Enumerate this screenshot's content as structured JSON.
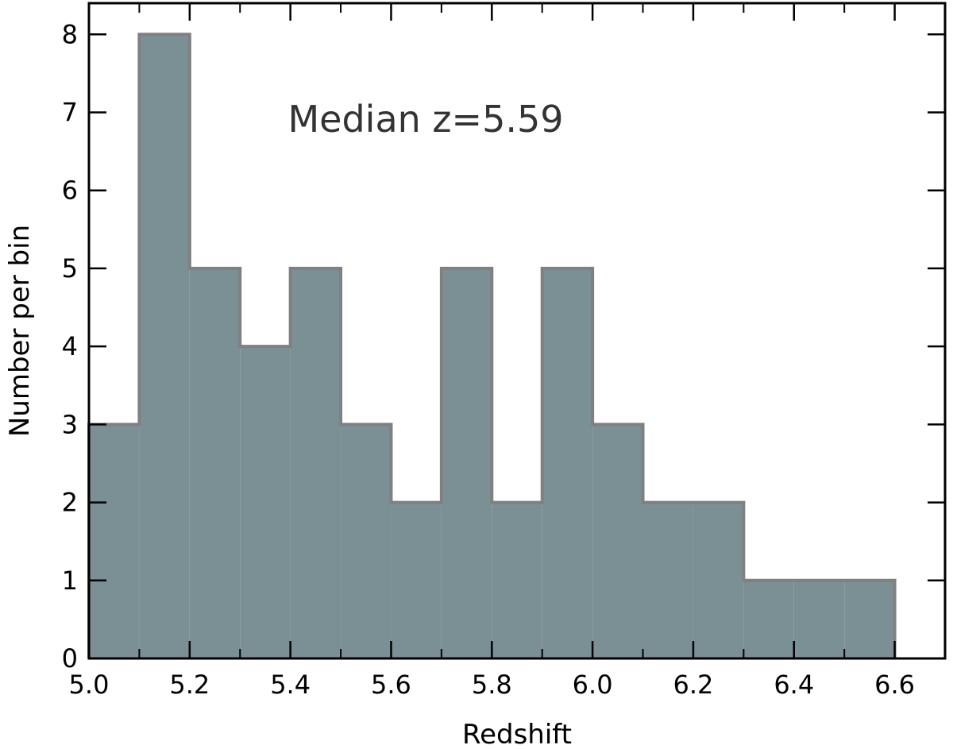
{
  "chart_data": {
    "type": "bar",
    "subtype": "histogram",
    "bin_edges": [
      5.0,
      5.1,
      5.2,
      5.3,
      5.4,
      5.5,
      5.6,
      5.7,
      5.8,
      5.9,
      6.0,
      6.1,
      6.2,
      6.3,
      6.4,
      6.5,
      6.6
    ],
    "values": [
      3,
      8,
      5,
      4,
      5,
      3,
      2,
      5,
      2,
      5,
      3,
      2,
      2,
      1,
      1,
      1
    ],
    "xlabel": "Redshift",
    "ylabel": "Number per bin",
    "xlim": [
      5.0,
      6.7
    ],
    "ylim": [
      0,
      8.4
    ],
    "xticks": [
      "5.0",
      "5.2",
      "5.4",
      "5.6",
      "5.8",
      "6.0",
      "6.2",
      "6.4",
      "6.6"
    ],
    "yticks": [
      "0",
      "1",
      "2",
      "3",
      "4",
      "5",
      "6",
      "7",
      "8"
    ],
    "annotation": "Median z=5.59",
    "fill_color": "#7b9095",
    "edge_color": "#808080",
    "grid": false,
    "ticks_direction": "in"
  }
}
